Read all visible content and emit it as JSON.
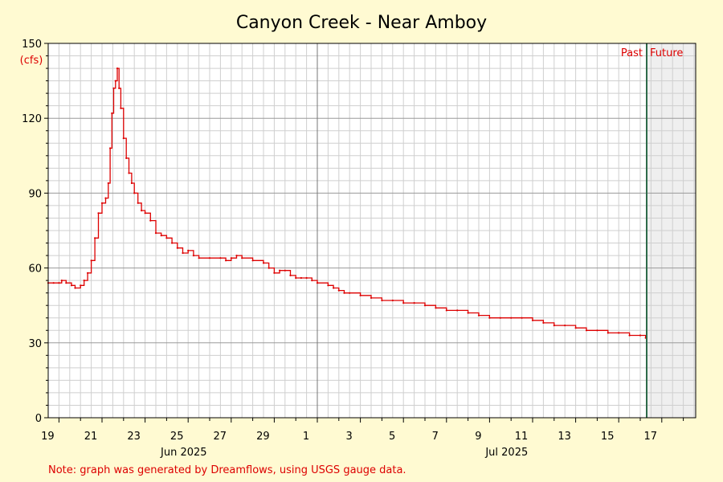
{
  "chart_data": {
    "type": "line",
    "title": "Canyon Creek - Near Amboy",
    "ylabel": "(cfs)",
    "xlabel": "",
    "ylim": [
      0,
      150
    ],
    "y_ticks": [
      0,
      30,
      60,
      90,
      120,
      150
    ],
    "x_tick_labels": [
      "19",
      "21",
      "23",
      "25",
      "27",
      "29",
      "1",
      "3",
      "5",
      "7",
      "9",
      "11",
      "13",
      "15",
      "17"
    ],
    "month_labels": [
      "Jun 2025",
      "Jul 2025"
    ],
    "region_labels": {
      "past": "Past",
      "future": "Future"
    },
    "note": "Note: graph was generated by Dreamflows, using USGS gauge data.",
    "grid": true,
    "colors": {
      "series": "#dd0000",
      "background": "#fffad2",
      "plot_background": "#ffffff",
      "future_region": "#efefef",
      "now_line": "#2e6b4a",
      "label_red": "#dd0000"
    },
    "series": [
      {
        "points": [
          [
            "06-18 12:00",
            54
          ],
          [
            "06-18 18:00",
            54
          ],
          [
            "06-19 00:00",
            54
          ],
          [
            "06-19 03:00",
            55
          ],
          [
            "06-19 08:00",
            54
          ],
          [
            "06-19 14:00",
            53
          ],
          [
            "06-19 18:00",
            52
          ],
          [
            "06-20 00:00",
            53
          ],
          [
            "06-20 04:00",
            55
          ],
          [
            "06-20 08:00",
            58
          ],
          [
            "06-20 12:00",
            63
          ],
          [
            "06-20 16:00",
            72
          ],
          [
            "06-20 20:00",
            82
          ],
          [
            "06-21 00:00",
            86
          ],
          [
            "06-21 04:00",
            88
          ],
          [
            "06-21 07:00",
            94
          ],
          [
            "06-21 09:00",
            108
          ],
          [
            "06-21 11:00",
            122
          ],
          [
            "06-21 13:00",
            132
          ],
          [
            "06-21 15:00",
            135
          ],
          [
            "06-21 17:00",
            140
          ],
          [
            "06-21 19:00",
            132
          ],
          [
            "06-21 21:00",
            124
          ],
          [
            "06-22 00:00",
            112
          ],
          [
            "06-22 03:00",
            104
          ],
          [
            "06-22 06:00",
            98
          ],
          [
            "06-22 09:00",
            94
          ],
          [
            "06-22 12:00",
            90
          ],
          [
            "06-22 16:00",
            86
          ],
          [
            "06-22 20:00",
            83
          ],
          [
            "06-23 00:00",
            82
          ],
          [
            "06-23 06:00",
            79
          ],
          [
            "06-23 12:00",
            74
          ],
          [
            "06-23 18:00",
            73
          ],
          [
            "06-24 00:00",
            72
          ],
          [
            "06-24 06:00",
            70
          ],
          [
            "06-24 12:00",
            68
          ],
          [
            "06-24 18:00",
            66
          ],
          [
            "06-25 00:00",
            67
          ],
          [
            "06-25 06:00",
            65
          ],
          [
            "06-25 12:00",
            64
          ],
          [
            "06-26 00:00",
            64
          ],
          [
            "06-26 12:00",
            64
          ],
          [
            "06-26 18:00",
            63
          ],
          [
            "06-27 00:00",
            64
          ],
          [
            "06-27 06:00",
            65
          ],
          [
            "06-27 12:00",
            64
          ],
          [
            "06-28 00:00",
            63
          ],
          [
            "06-28 12:00",
            62
          ],
          [
            "06-28 18:00",
            60
          ],
          [
            "06-29 00:00",
            58
          ],
          [
            "06-29 06:00",
            59
          ],
          [
            "06-29 12:00",
            59
          ],
          [
            "06-29 18:00",
            57
          ],
          [
            "06-30 00:00",
            56
          ],
          [
            "06-30 06:00",
            56
          ],
          [
            "06-30 12:00",
            56
          ],
          [
            "06-30 18:00",
            55
          ],
          [
            "07-01 00:00",
            54
          ],
          [
            "07-01 12:00",
            53
          ],
          [
            "07-01 18:00",
            52
          ],
          [
            "07-02 00:00",
            51
          ],
          [
            "07-02 06:00",
            50
          ],
          [
            "07-02 12:00",
            50
          ],
          [
            "07-03 00:00",
            49
          ],
          [
            "07-03 12:00",
            48
          ],
          [
            "07-04 00:00",
            47
          ],
          [
            "07-04 12:00",
            47
          ],
          [
            "07-05 00:00",
            46
          ],
          [
            "07-05 12:00",
            46
          ],
          [
            "07-06 00:00",
            45
          ],
          [
            "07-06 12:00",
            44
          ],
          [
            "07-07 00:00",
            43
          ],
          [
            "07-07 12:00",
            43
          ],
          [
            "07-08 00:00",
            42
          ],
          [
            "07-08 12:00",
            41
          ],
          [
            "07-09 00:00",
            40
          ],
          [
            "07-09 12:00",
            40
          ],
          [
            "07-10 00:00",
            40
          ],
          [
            "07-10 12:00",
            40
          ],
          [
            "07-11 00:00",
            39
          ],
          [
            "07-11 12:00",
            38
          ],
          [
            "07-12 00:00",
            37
          ],
          [
            "07-12 12:00",
            37
          ],
          [
            "07-13 00:00",
            36
          ],
          [
            "07-13 12:00",
            35
          ],
          [
            "07-14 00:00",
            35
          ],
          [
            "07-14 12:00",
            34
          ],
          [
            "07-15 00:00",
            34
          ],
          [
            "07-15 12:00",
            33
          ],
          [
            "07-16 00:00",
            33
          ],
          [
            "07-16 06:00",
            32
          ]
        ]
      }
    ]
  }
}
